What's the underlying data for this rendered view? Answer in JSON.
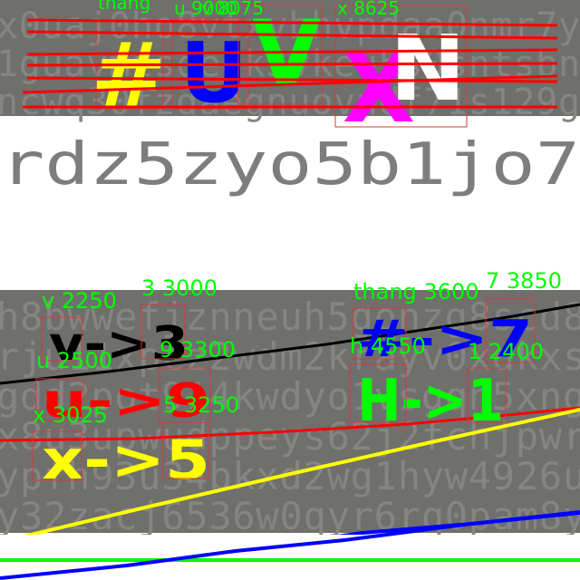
{
  "colors": {
    "panel_gray": "#6f6f6c",
    "bg_char": "#8e8e8c",
    "label_green": "#00ff00",
    "box_red": "#d23c3c",
    "line_red": "#ff0000",
    "line_yellow": "#ffff00",
    "line_blue": "#0000ff",
    "line_black": "#000000",
    "line_green": "#00ff00",
    "glyph_yellow": "#ffff00",
    "glyph_blue": "#0000ff",
    "glyph_green": "#00ff00",
    "glyph_magenta": "#ff00ff",
    "glyph_white": "#ffffff",
    "glyph_black": "#000000",
    "glyph_red": "#ff0000"
  },
  "top_banner": {
    "glyphs": [
      "#",
      "U",
      "V",
      "X",
      "N"
    ],
    "box_labels": [
      "thang",
      "u 9000",
      "v 8075",
      "x 8625"
    ]
  },
  "faint_text_row": "rdz5zyo5b1jo7",
  "bottom_panel": {
    "rules": [
      {
        "text": "v->3",
        "mark_color": "#000000"
      },
      {
        "text": "u->9",
        "mark_color": "#ff0000"
      },
      {
        "text": "x->5",
        "mark_color": "#ffff00"
      },
      {
        "text": "#->7",
        "mark_color": "#0000ff"
      },
      {
        "text": "H->1",
        "mark_color": "#00ff00"
      }
    ],
    "box_labels": [
      "v 2250",
      "3 3000",
      "u 2500",
      "9 3300",
      "x 3025",
      "5 3250",
      "thang 3600",
      "7 3850",
      "h 4550",
      "1 2400"
    ]
  }
}
